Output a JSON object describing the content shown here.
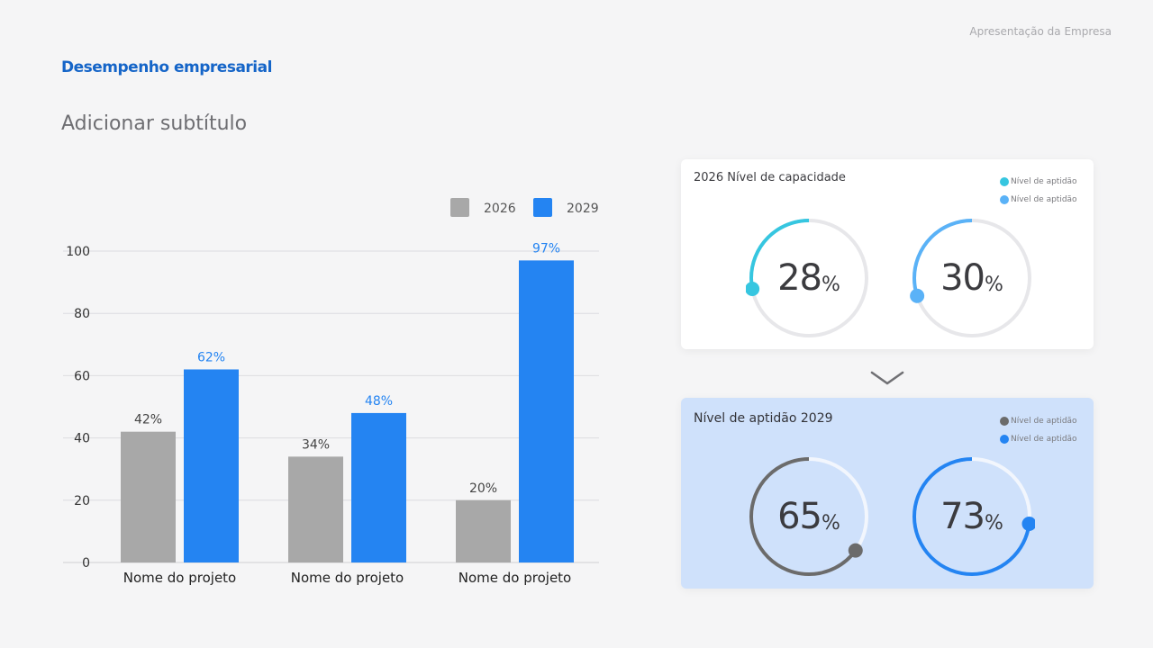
{
  "header": {
    "brand": "Apresentação da Empresa",
    "title": "Desempenho empresarial",
    "subtitle": "Adicionar subtítulo"
  },
  "chart_data": [
    {
      "type": "bar",
      "categories": [
        "Nome do projeto",
        "Nome do projeto",
        "Nome do projeto"
      ],
      "series": [
        {
          "name": "2026",
          "values": [
            42,
            34,
            20
          ],
          "color": "#a8a8a8"
        },
        {
          "name": "2029",
          "values": [
            62,
            48,
            97
          ],
          "color": "#2484f2"
        }
      ],
      "data_labels": [
        [
          "42%",
          "34%",
          "20%"
        ],
        [
          "62%",
          "48%",
          "97%"
        ]
      ],
      "ylim": [
        0,
        100
      ],
      "yticks": [
        0,
        20,
        40,
        60,
        80,
        100
      ],
      "grid": true,
      "legend_position": "top-right"
    }
  ],
  "cards": [
    {
      "title": "2026 Nível de capacidade",
      "legend": [
        {
          "label": "Nível de aptidão",
          "color": "#36c6e0"
        },
        {
          "label": "Nível de aptidão",
          "color": "#5ab2f7"
        }
      ],
      "gauges": [
        {
          "value": 28,
          "unit": "%",
          "color": "#36c6e0",
          "end_color": "#36c6e0",
          "percent": 28
        },
        {
          "value": 30,
          "unit": "%",
          "color": "#5ab2f7",
          "end_color": "#5ab2f7",
          "percent": 30
        }
      ]
    },
    {
      "title": "Nível de aptidão 2029",
      "legend": [
        {
          "label": "Nível de aptidão",
          "color": "#6b6b6b"
        },
        {
          "label": "Nível de aptidão",
          "color": "#2484f2"
        }
      ],
      "gauges": [
        {
          "value": 65,
          "unit": "%",
          "color": "#6b6b6b",
          "end_color": "#6b6b6b",
          "percent": 65
        },
        {
          "value": 73,
          "unit": "%",
          "color": "#2484f2",
          "end_color": "#2484f2",
          "percent": 73
        }
      ]
    }
  ],
  "icons": {
    "chevron": "chevron-down-icon"
  }
}
